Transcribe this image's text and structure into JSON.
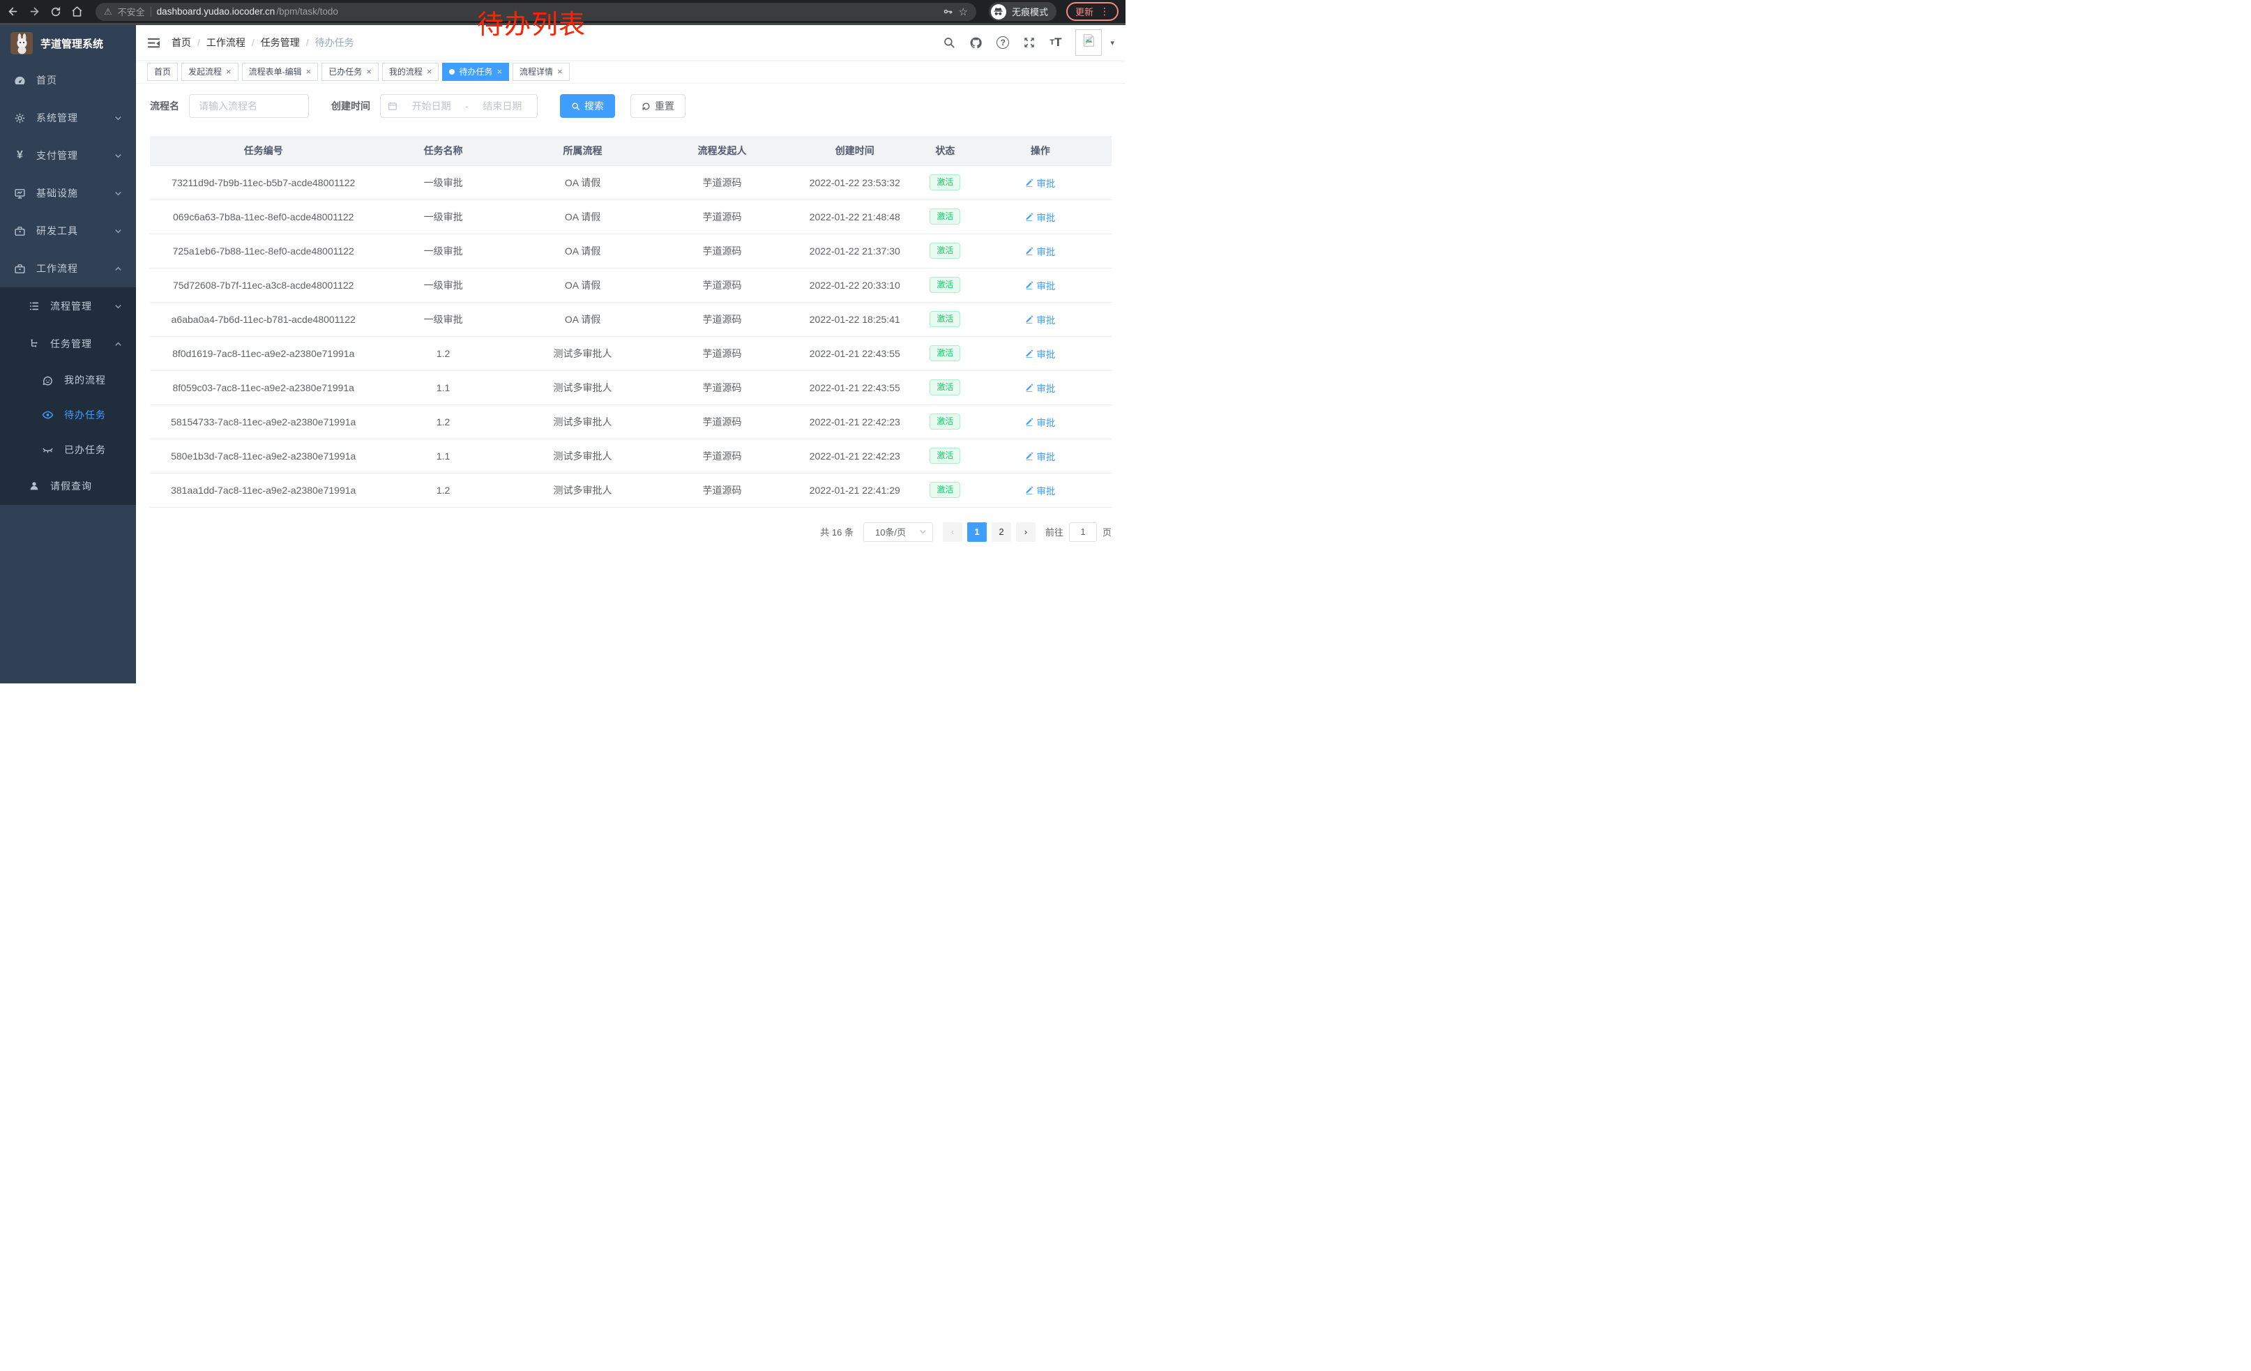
{
  "annotation": {
    "text": "待办列表",
    "color": "#FB2300"
  },
  "browser": {
    "security": "不安全",
    "host": "dashboard.yudao.iocoder.cn",
    "path": "/bpm/task/todo",
    "incognito": "无痕模式",
    "update": "更新"
  },
  "sidebar": {
    "title": "芋道管理系统",
    "items": [
      {
        "label": "首页",
        "icon": "dashboard-icon",
        "level": 1
      },
      {
        "label": "系统管理",
        "icon": "gear-icon",
        "level": 1,
        "chevron": "down"
      },
      {
        "label": "支付管理",
        "icon": "yen-icon",
        "level": 1,
        "chevron": "down"
      },
      {
        "label": "基础设施",
        "icon": "monitor-icon",
        "level": 1,
        "chevron": "down"
      },
      {
        "label": "研发工具",
        "icon": "toolbox-icon",
        "level": 1,
        "chevron": "down"
      },
      {
        "label": "工作流程",
        "icon": "briefcase-icon",
        "level": 1,
        "chevron": "up"
      },
      {
        "label": "流程管理",
        "icon": "list-icon",
        "level": 2,
        "chevron": "down"
      },
      {
        "label": "任务管理",
        "icon": "tree-icon",
        "level": 2,
        "chevron": "up"
      },
      {
        "label": "我的流程",
        "icon": "face-icon",
        "level": 3
      },
      {
        "label": "待办任务",
        "icon": "eye-icon",
        "level": 3,
        "active": true
      },
      {
        "label": "已办任务",
        "icon": "eye-closed-icon",
        "level": 3
      },
      {
        "label": "请假查询",
        "icon": "user-icon",
        "level": 2
      }
    ]
  },
  "breadcrumb": {
    "items": [
      "首页",
      "工作流程",
      "任务管理",
      "待办任务"
    ]
  },
  "tabs": [
    {
      "label": "首页",
      "closable": false,
      "active": false
    },
    {
      "label": "发起流程",
      "closable": true,
      "active": false
    },
    {
      "label": "流程表单-编辑",
      "closable": true,
      "active": false
    },
    {
      "label": "已办任务",
      "closable": true,
      "active": false
    },
    {
      "label": "我的流程",
      "closable": true,
      "active": false
    },
    {
      "label": "待办任务",
      "closable": true,
      "active": true
    },
    {
      "label": "流程详情",
      "closable": true,
      "active": false
    }
  ],
  "filters": {
    "name_label": "流程名",
    "name_placeholder": "请输入流程名",
    "time_label": "创建时间",
    "start_placeholder": "开始日期",
    "range_separator": "-",
    "end_placeholder": "结束日期",
    "search_label": "搜索",
    "reset_label": "重置"
  },
  "table": {
    "columns": [
      "任务编号",
      "任务名称",
      "所属流程",
      "流程发起人",
      "创建时间",
      "状态",
      "操作"
    ],
    "approve_label": "审批",
    "rows": [
      {
        "id": "73211d9d-7b9b-11ec-b5b7-acde48001122",
        "name": "一级审批",
        "process": "OA 请假",
        "starter": "芋道源码",
        "time": "2022-01-22 23:53:32",
        "status": "激活"
      },
      {
        "id": "069c6a63-7b8a-11ec-8ef0-acde48001122",
        "name": "一级审批",
        "process": "OA 请假",
        "starter": "芋道源码",
        "time": "2022-01-22 21:48:48",
        "status": "激活"
      },
      {
        "id": "725a1eb6-7b88-11ec-8ef0-acde48001122",
        "name": "一级审批",
        "process": "OA 请假",
        "starter": "芋道源码",
        "time": "2022-01-22 21:37:30",
        "status": "激活"
      },
      {
        "id": "75d72608-7b7f-11ec-a3c8-acde48001122",
        "name": "一级审批",
        "process": "OA 请假",
        "starter": "芋道源码",
        "time": "2022-01-22 20:33:10",
        "status": "激活"
      },
      {
        "id": "a6aba0a4-7b6d-11ec-b781-acde48001122",
        "name": "一级审批",
        "process": "OA 请假",
        "starter": "芋道源码",
        "time": "2022-01-22 18:25:41",
        "status": "激活"
      },
      {
        "id": "8f0d1619-7ac8-11ec-a9e2-a2380e71991a",
        "name": "1.2",
        "process": "测试多审批人",
        "starter": "芋道源码",
        "time": "2022-01-21 22:43:55",
        "status": "激活"
      },
      {
        "id": "8f059c03-7ac8-11ec-a9e2-a2380e71991a",
        "name": "1.1",
        "process": "测试多审批人",
        "starter": "芋道源码",
        "time": "2022-01-21 22:43:55",
        "status": "激活"
      },
      {
        "id": "58154733-7ac8-11ec-a9e2-a2380e71991a",
        "name": "1.2",
        "process": "测试多审批人",
        "starter": "芋道源码",
        "time": "2022-01-21 22:42:23",
        "status": "激活"
      },
      {
        "id": "580e1b3d-7ac8-11ec-a9e2-a2380e71991a",
        "name": "1.1",
        "process": "测试多审批人",
        "starter": "芋道源码",
        "time": "2022-01-21 22:42:23",
        "status": "激活"
      },
      {
        "id": "381aa1dd-7ac8-11ec-a9e2-a2380e71991a",
        "name": "1.2",
        "process": "测试多审批人",
        "starter": "芋道源码",
        "time": "2022-01-21 22:41:29",
        "status": "激活"
      }
    ]
  },
  "pagination": {
    "total_text": "共 16 条",
    "page_size": "10条/页",
    "pages": [
      "1",
      "2"
    ],
    "active_page": "1",
    "goto_label": "前往",
    "goto_value": "1",
    "page_suffix": "页"
  },
  "icons": {
    "close": "×",
    "warning": "⚠",
    "star": "☆",
    "dots": "⋮",
    "caret_down": "▾",
    "yen": "¥",
    "prev": "‹",
    "next": "›",
    "question": "?"
  },
  "colors": {
    "accent": "#409EFF",
    "success_text": "#13CE66",
    "success_bg": "#E7FAF0",
    "sidebar_bg": "#304156",
    "submenu_bg": "#1F2D3D",
    "annotation": "#FB2300",
    "chrome_bg": "#202124",
    "update_btn": "#F28B82"
  }
}
